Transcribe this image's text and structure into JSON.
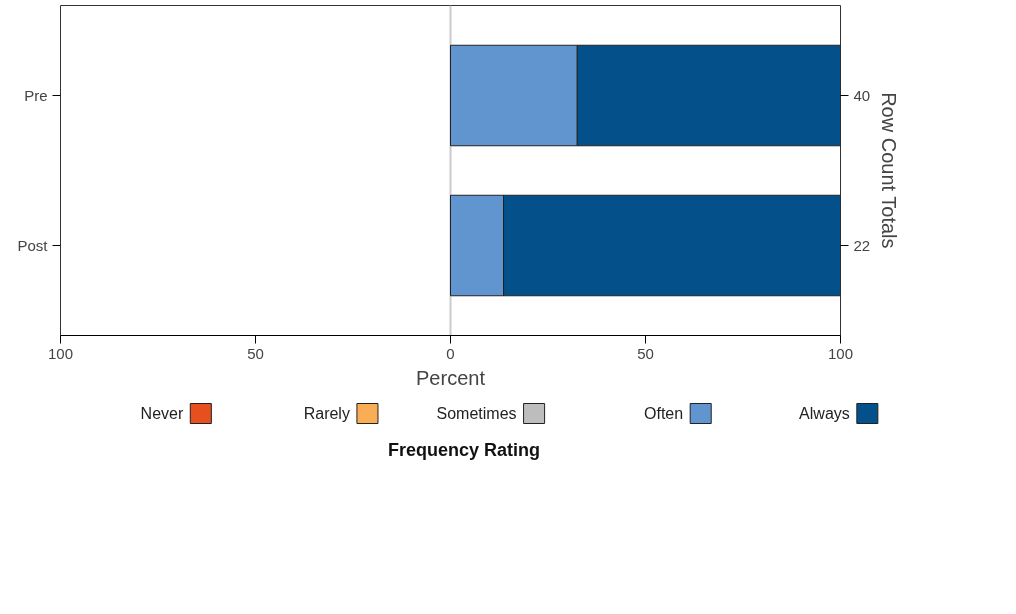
{
  "chart_data": {
    "type": "bar",
    "orientation": "horizontal",
    "stacked": true,
    "categories": [
      "Pre",
      "Post"
    ],
    "series": [
      {
        "name": "Never",
        "color": "#e6501e",
        "values": [
          0,
          0
        ]
      },
      {
        "name": "Rarely",
        "color": "#f9ad55",
        "values": [
          0,
          0
        ]
      },
      {
        "name": "Sometimes",
        "color": "#bdbdbd",
        "values": [
          0,
          0
        ]
      },
      {
        "name": "Often",
        "color": "#6195cf",
        "values": [
          32.5,
          13.6
        ]
      },
      {
        "name": "Always",
        "color": "#04508a",
        "values": [
          67.5,
          86.4
        ]
      }
    ],
    "annotations": [
      "40",
      "22"
    ],
    "xlabel": "Percent",
    "y2label": "Row Count Totals",
    "legend_title": "Frequency Rating",
    "legend": "bottom",
    "xlim": [
      -100,
      100
    ],
    "xticks": [
      {
        "value": -100,
        "label": "100"
      },
      {
        "value": -50,
        "label": "50"
      },
      0,
      50,
      100
    ],
    "ref_lines": [
      {
        "axis": "x",
        "value": 0,
        "color": "#cccccc"
      }
    ],
    "grid": false
  }
}
